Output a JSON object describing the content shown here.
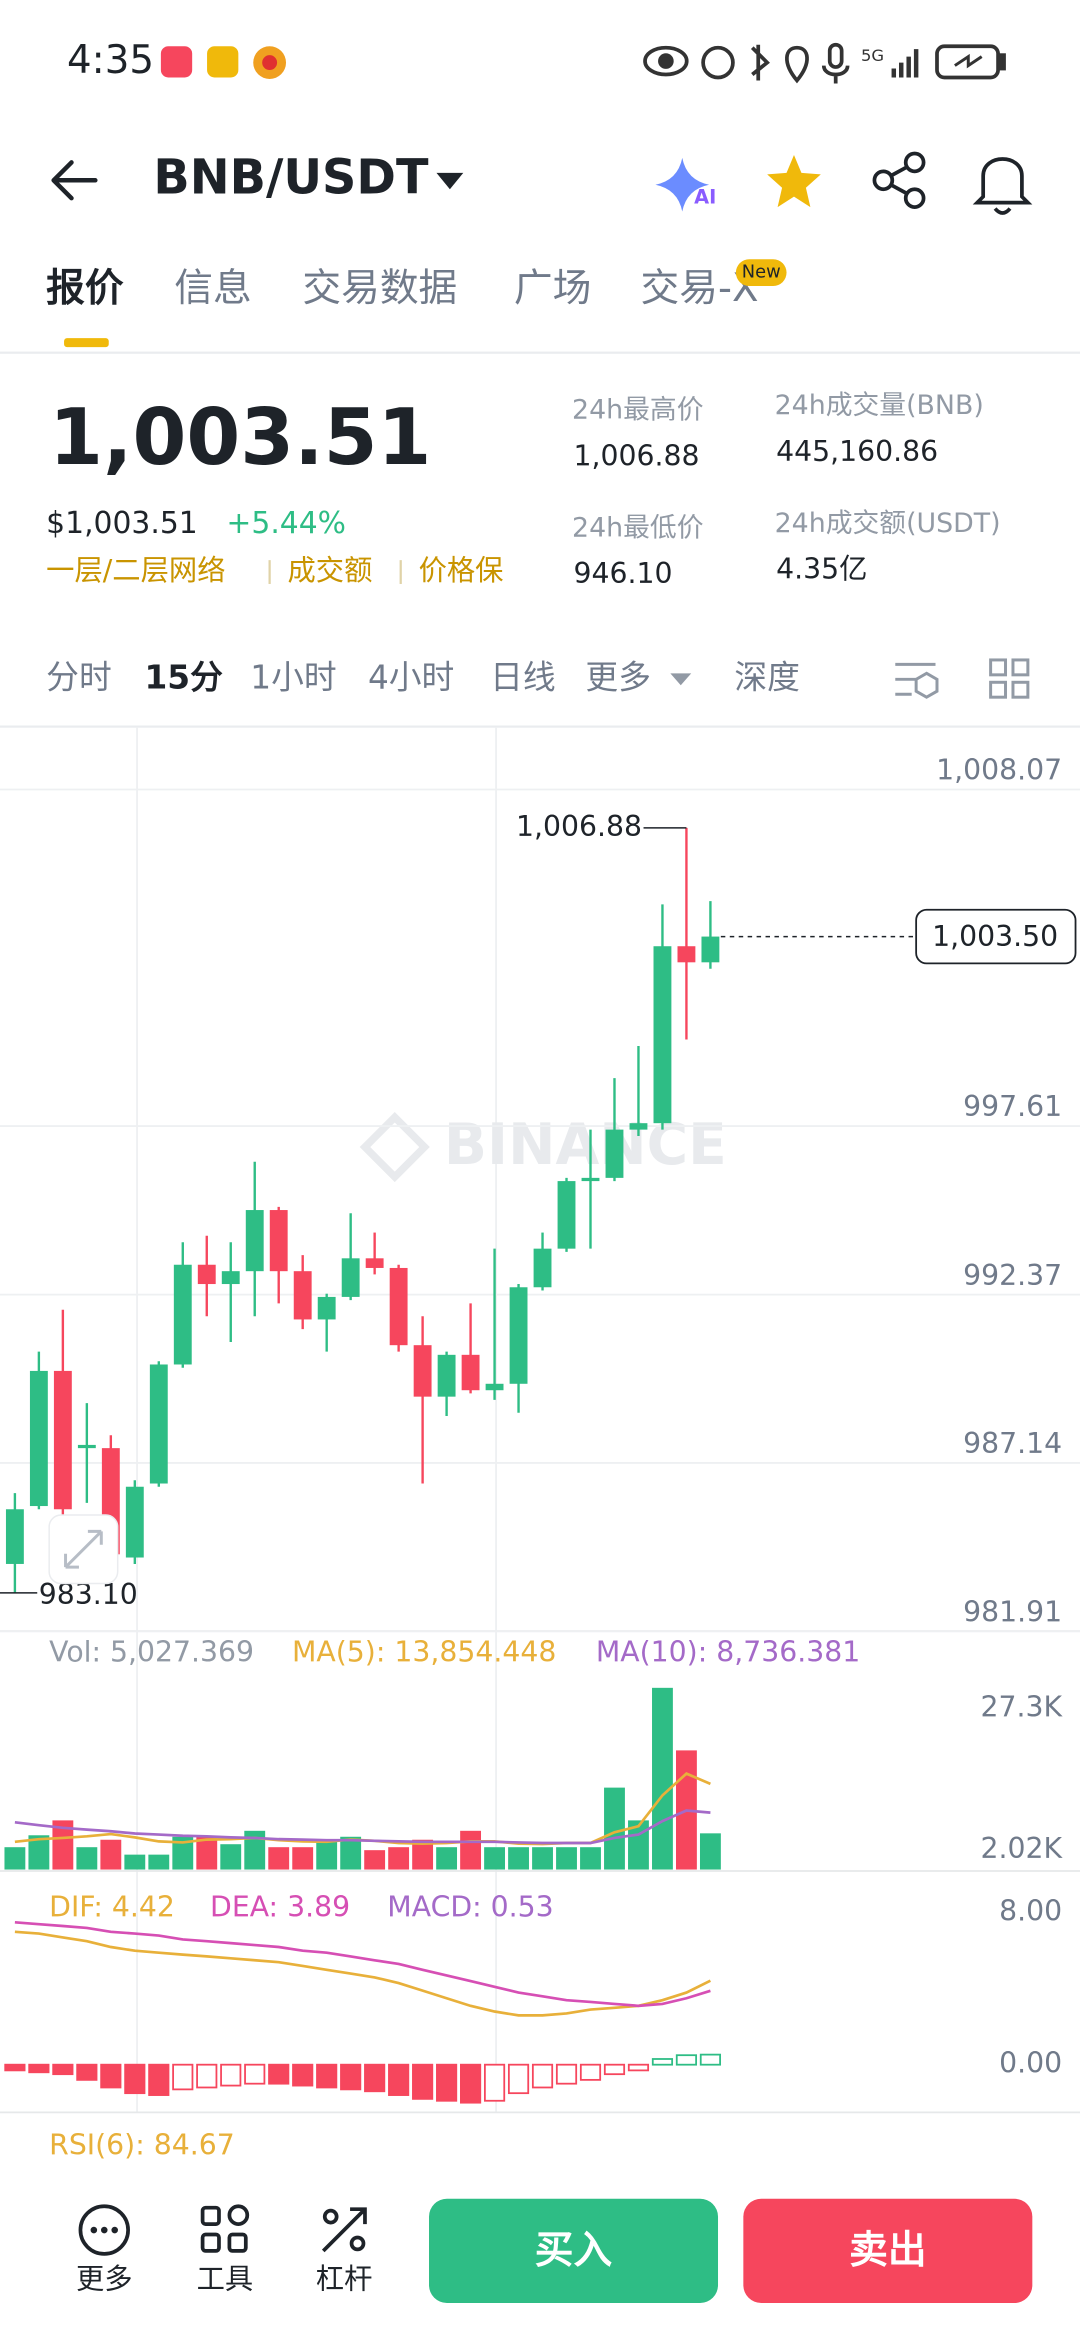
{
  "status_bar": {
    "time": "4:35"
  },
  "header": {
    "pair": "BNB/USDT"
  },
  "tabs": [
    "报价",
    "信息",
    "交易数据",
    "广场",
    "交易-X"
  ],
  "tab_badge": "New",
  "summary": {
    "price": "1,003.51",
    "usd_price": "$1,003.51",
    "change": "+5.44%",
    "tags": [
      "一层/二层网络",
      "成交额",
      "价格保"
    ],
    "stats": [
      {
        "label": "24h最高价",
        "value": "1,006.88"
      },
      {
        "label": "24h最低价",
        "value": "946.10"
      },
      {
        "label": "24h成交量(BNB)",
        "value": "445,160.86"
      },
      {
        "label": "24h成交额(USDT)",
        "value": "4.35亿"
      }
    ]
  },
  "timeframes": [
    "分时",
    "15分",
    "1小时",
    "4小时",
    "日线",
    "更多",
    "深度"
  ],
  "chart_data": [
    {
      "type": "candlestick",
      "watermark": "BINANCE",
      "open": [
        984.0,
        985.8,
        990.0,
        987.6,
        987.6,
        984.2,
        986.5,
        990.2,
        993.3,
        992.7,
        993.1,
        995.0,
        993.1,
        991.6,
        992.3,
        993.5,
        993.2,
        990.8,
        989.2,
        990.5,
        989.4,
        989.6,
        992.6,
        993.8,
        995.9,
        996.0,
        997.5,
        997.7,
        1003.2,
        1002.7
      ],
      "high": [
        986.2,
        990.6,
        991.9,
        989.0,
        988.0,
        986.6,
        990.3,
        994.0,
        994.2,
        994.0,
        996.5,
        995.1,
        993.6,
        992.4,
        994.9,
        994.3,
        993.3,
        991.7,
        990.6,
        992.1,
        993.8,
        992.7,
        994.3,
        996.0,
        997.5,
        999.1,
        1000.1,
        1004.5,
        1006.88,
        1004.6
      ],
      "low": [
        983.1,
        985.7,
        984.3,
        985.9,
        984.0,
        984.0,
        986.4,
        990.1,
        991.7,
        990.9,
        991.7,
        992.1,
        991.3,
        990.6,
        992.2,
        993.0,
        990.6,
        986.5,
        988.6,
        989.3,
        989.1,
        988.7,
        992.5,
        993.7,
        993.8,
        995.9,
        997.3,
        997.5,
        1000.3,
        1002.5
      ],
      "close": [
        985.7,
        990.0,
        985.7,
        987.7,
        984.3,
        986.4,
        990.2,
        993.3,
        992.7,
        993.1,
        995.0,
        993.1,
        991.6,
        992.3,
        993.5,
        993.2,
        990.8,
        989.2,
        990.5,
        989.4,
        989.6,
        992.6,
        993.8,
        995.9,
        996.0,
        997.5,
        997.7,
        1003.2,
        1002.7,
        1003.5
      ],
      "up_color": "#2ebd85",
      "down_color": "#f6465d",
      "ylim": [
        981.91,
        1008.07
      ],
      "yticks": [
        981.91,
        987.14,
        992.37,
        997.61,
        {
          "value": 1008.07,
          "label": "1,008.07"
        }
      ],
      "high_marker": {
        "value": 1006.88,
        "label": "1,006.88"
      },
      "low_marker": {
        "value": 983.1,
        "label": "983.10"
      },
      "last_price": {
        "value": 1003.5,
        "label": "1,003.50"
      }
    },
    {
      "type": "bar",
      "legend": [
        "Vol: 5,027.369",
        "MA(5): 13,854.448",
        "MA(10): 8,736.381"
      ],
      "legend_colors": [
        "#929aa5",
        "#e8b03a",
        "#a46ac8"
      ],
      "values": [
        2552,
        4680,
        7340,
        2552,
        3882,
        1222,
        1222,
        4414,
        4414,
        3084,
        5478,
        2552,
        2552,
        3616,
        4414,
        2020,
        2552,
        3882,
        2552,
        5478,
        2552,
        2552,
        2552,
        2552,
        2552,
        13192,
        7340,
        31014,
        19842,
        5027
      ],
      "ma5": [
        3500,
        4000,
        4200,
        4500,
        4900,
        4300,
        3600,
        3400,
        3900,
        4000,
        4200,
        3800,
        3600,
        3500,
        3900,
        3700,
        3300,
        3200,
        3300,
        3600,
        3600,
        3200,
        3100,
        3300,
        3300,
        5200,
        6300,
        11800,
        15700,
        13854
      ],
      "ma10": [
        7000,
        6500,
        6000,
        5700,
        5400,
        5000,
        4800,
        4600,
        4500,
        4300,
        4200,
        4000,
        3900,
        3800,
        3800,
        3700,
        3600,
        3500,
        3500,
        3500,
        3500,
        3400,
        3300,
        3300,
        3300,
        4200,
        4800,
        7200,
        9100,
        8736
      ],
      "ylim": [
        -1440,
        41130
      ],
      "yticks": [
        {
          "value": 2020,
          "label": "2.02K"
        },
        {
          "value": 27300,
          "label": "27.3K"
        }
      ]
    },
    {
      "type": "macd",
      "legend": [
        "DIF: 4.42",
        "DEA: 3.89",
        "MACD: 0.53"
      ],
      "legend_colors": [
        "#e8b03a",
        "#d64fb4",
        "#a46ac8"
      ],
      "dif": [
        7.0,
        6.9,
        6.7,
        6.5,
        6.2,
        6.0,
        5.9,
        5.8,
        5.7,
        5.6,
        5.5,
        5.4,
        5.2,
        5.0,
        4.8,
        4.6,
        4.3,
        3.9,
        3.5,
        3.1,
        2.8,
        2.6,
        2.6,
        2.7,
        2.9,
        3.0,
        3.1,
        3.4,
        3.8,
        4.42
      ],
      "dea": [
        7.5,
        7.4,
        7.3,
        7.2,
        7.0,
        6.9,
        6.8,
        6.6,
        6.5,
        6.4,
        6.3,
        6.2,
        6.0,
        5.9,
        5.7,
        5.5,
        5.3,
        5.0,
        4.7,
        4.4,
        4.1,
        3.8,
        3.6,
        3.4,
        3.3,
        3.2,
        3.1,
        3.2,
        3.5,
        3.89
      ],
      "macd": [
        -0.3,
        -0.4,
        -0.5,
        -0.8,
        -1.2,
        -1.5,
        -1.6,
        -1.3,
        -1.2,
        -1.1,
        -1.0,
        -1.0,
        -1.1,
        -1.2,
        -1.3,
        -1.4,
        -1.6,
        -1.8,
        -1.9,
        -2.0,
        -1.9,
        -1.5,
        -1.2,
        -1.0,
        -0.8,
        -0.5,
        -0.3,
        0.3,
        0.5,
        0.53
      ],
      "ylim": [
        -2.51,
        10.04
      ],
      "yticks": [
        {
          "value": 0,
          "label": "0.00"
        },
        {
          "value": 8,
          "label": "8.00"
        }
      ]
    }
  ],
  "rsi_label": "RSI(6): 84.67",
  "bottom_bar": {
    "actions": [
      "更多",
      "工具",
      "杠杆"
    ],
    "buy": "买入",
    "sell": "卖出"
  }
}
